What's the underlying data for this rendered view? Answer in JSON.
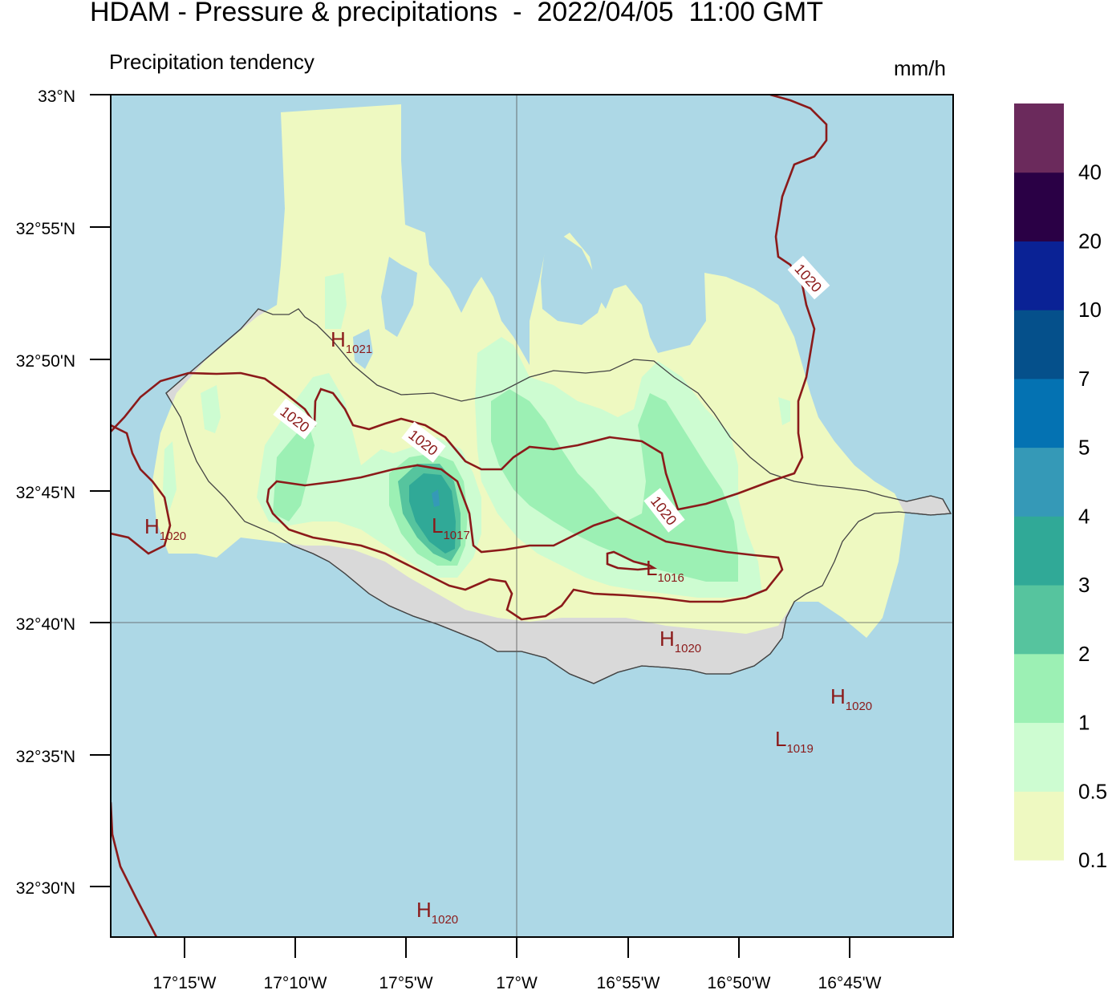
{
  "title": "HDAM - Pressure & precipitations  -  2022/04/05  11:00 GMT",
  "subtitle": "Precipitation tendency",
  "units": "mm/h",
  "lat_ticks": [
    "33°N",
    "32°55'N",
    "32°50'N",
    "32°45'N",
    "32°40'N",
    "32°35'N",
    "32°30'N"
  ],
  "lon_ticks": [
    "17°15'W",
    "17°10'W",
    "17°5'W",
    "17°W",
    "16°55'W",
    "16°50'W",
    "16°45'W"
  ],
  "colorbar": {
    "labels": [
      "0.1",
      "0.5",
      "1",
      "2",
      "3",
      "4",
      "5",
      "7",
      "10",
      "20",
      "40"
    ],
    "colors": [
      "#eef9c1",
      "#cdfcd1",
      "#9cf0b4",
      "#56c49e",
      "#30a997",
      "#3599b7",
      "#0472b2",
      "#05508b",
      "#0a2295",
      "#2a0045",
      "#6b2a5c"
    ]
  },
  "colors": {
    "sea": "#add8e6",
    "land": "#d9d9d9",
    "isobar": "#8b1a1a",
    "coast": "#444444"
  },
  "isobar_labels": [
    "1020",
    "1020",
    "1020",
    "1020"
  ],
  "pressure_centers": [
    {
      "kind": "H",
      "value": "1021"
    },
    {
      "kind": "H",
      "value": "1020"
    },
    {
      "kind": "L",
      "value": "1017"
    },
    {
      "kind": "L",
      "value": "1016"
    },
    {
      "kind": "H",
      "value": "1020"
    },
    {
      "kind": "H",
      "value": "1020"
    },
    {
      "kind": "L",
      "value": "1019"
    },
    {
      "kind": "H",
      "value": "1020"
    }
  ]
}
